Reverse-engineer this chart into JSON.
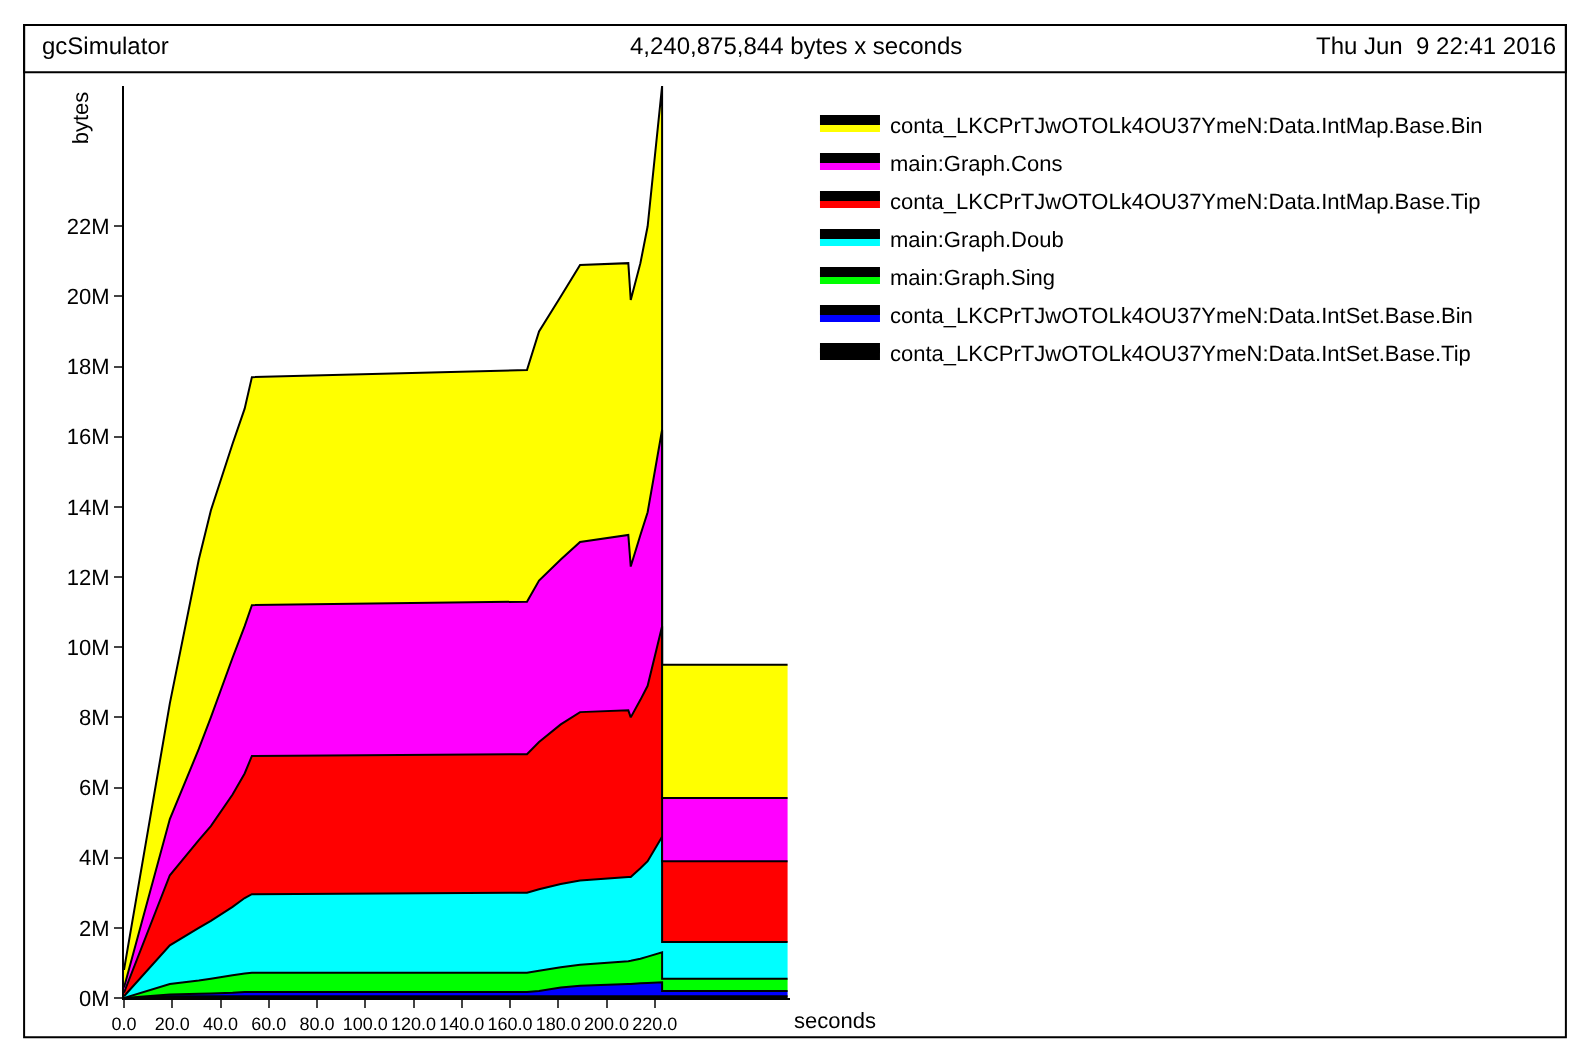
{
  "chart_data": {
    "type": "area",
    "stacked": true,
    "title": "gcSimulator",
    "annotations": [
      "4,240,875,844 bytes x seconds",
      "Thu Jun  9 22:41 2016"
    ],
    "xlabel": "seconds",
    "ylabel": "bytes",
    "x": [
      0,
      19,
      31,
      36,
      45,
      50,
      53,
      167,
      172,
      181,
      189,
      209,
      210,
      214,
      217,
      223,
      223,
      275
    ],
    "series": [
      {
        "name": "conta_LKCPrTJwOTOLk4OU37YmeN:Data.IntSet.Base.Tip",
        "color": "#000000",
        "values": [
          0,
          0.05,
          0.05,
          0.05,
          0.05,
          0.05,
          0.05,
          0.05,
          0.05,
          0.05,
          0.05,
          0.05,
          0.05,
          0.05,
          0.05,
          0.05,
          0.05,
          0.05
        ]
      },
      {
        "name": "conta_LKCPrTJwOTOLk4OU37YmeN:Data.IntSet.Base.Bin",
        "color": "#0000ff",
        "values": [
          0,
          0.05,
          0.07,
          0.08,
          0.1,
          0.12,
          0.12,
          0.12,
          0.15,
          0.25,
          0.3,
          0.35,
          0.35,
          0.37,
          0.38,
          0.4,
          0.15,
          0.15
        ]
      },
      {
        "name": "main:Graph.Sing",
        "color": "#00ff00",
        "values": [
          0,
          0.3,
          0.38,
          0.42,
          0.5,
          0.53,
          0.55,
          0.55,
          0.58,
          0.58,
          0.6,
          0.65,
          0.66,
          0.7,
          0.75,
          0.85,
          0.35,
          0.35
        ]
      },
      {
        "name": "main:Graph.Doub",
        "color": "#00ffff",
        "values": [
          0.05,
          1.1,
          1.5,
          1.65,
          1.95,
          2.15,
          2.24,
          2.28,
          2.32,
          2.37,
          2.4,
          2.4,
          2.39,
          2.58,
          2.72,
          3.3,
          1.05,
          1.05
        ]
      },
      {
        "name": "conta_LKCPrTJwOTOLk4OU37YmeN:Data.IntMap.Base.Tip",
        "color": "#ff0000",
        "values": [
          0.1,
          2.0,
          2.5,
          2.7,
          3.2,
          3.55,
          3.94,
          3.95,
          4.2,
          4.55,
          4.8,
          4.75,
          4.55,
          4.8,
          5.0,
          6.0,
          2.3,
          2.3
        ]
      },
      {
        "name": "main:Graph.Cons",
        "color": "#ff00ff",
        "values": [
          0.15,
          1.6,
          2.6,
          3.1,
          3.9,
          4.2,
          4.3,
          4.35,
          4.6,
          4.7,
          4.85,
          5.0,
          4.3,
          4.7,
          4.95,
          5.6,
          1.8,
          1.8
        ]
      },
      {
        "name": "conta_LKCPrTJwOTOLk4OU37YmeN:Data.IntMap.Base.Bin",
        "color": "#ffff00",
        "values": [
          0.5,
          3.3,
          5.4,
          5.9,
          6.1,
          6.2,
          6.5,
          6.6,
          7.1,
          7.5,
          7.9,
          7.75,
          7.6,
          7.75,
          8.15,
          9.8,
          3.8,
          3.8
        ]
      }
    ],
    "xlim": [
      0,
      276
    ],
    "xticks": [
      {
        "value": 0,
        "label": "0.0"
      },
      {
        "value": 20,
        "label": "20.0"
      },
      {
        "value": 40,
        "label": "40.0"
      },
      {
        "value": 60,
        "label": "60.0"
      },
      {
        "value": 80,
        "label": "80.0"
      },
      {
        "value": 100,
        "label": "100.0"
      },
      {
        "value": 120,
        "label": "120.0"
      },
      {
        "value": 140,
        "label": "140.0"
      },
      {
        "value": 160,
        "label": "160.0"
      },
      {
        "value": 180,
        "label": "180.0"
      },
      {
        "value": 200,
        "label": "200.0"
      },
      {
        "value": 220,
        "label": "220.0"
      }
    ],
    "ylim": [
      0,
      26
    ],
    "yticks": [
      {
        "value": 0,
        "label": "0M"
      },
      {
        "value": 2,
        "label": "2M"
      },
      {
        "value": 4,
        "label": "4M"
      },
      {
        "value": 6,
        "label": "6M"
      },
      {
        "value": 8,
        "label": "8M"
      },
      {
        "value": 10,
        "label": "10M"
      },
      {
        "value": 12,
        "label": "12M"
      },
      {
        "value": 14,
        "label": "14M"
      },
      {
        "value": 16,
        "label": "16M"
      },
      {
        "value": 18,
        "label": "18M"
      },
      {
        "value": 20,
        "label": "20M"
      },
      {
        "value": 22,
        "label": "22M"
      }
    ],
    "legend": "right"
  }
}
